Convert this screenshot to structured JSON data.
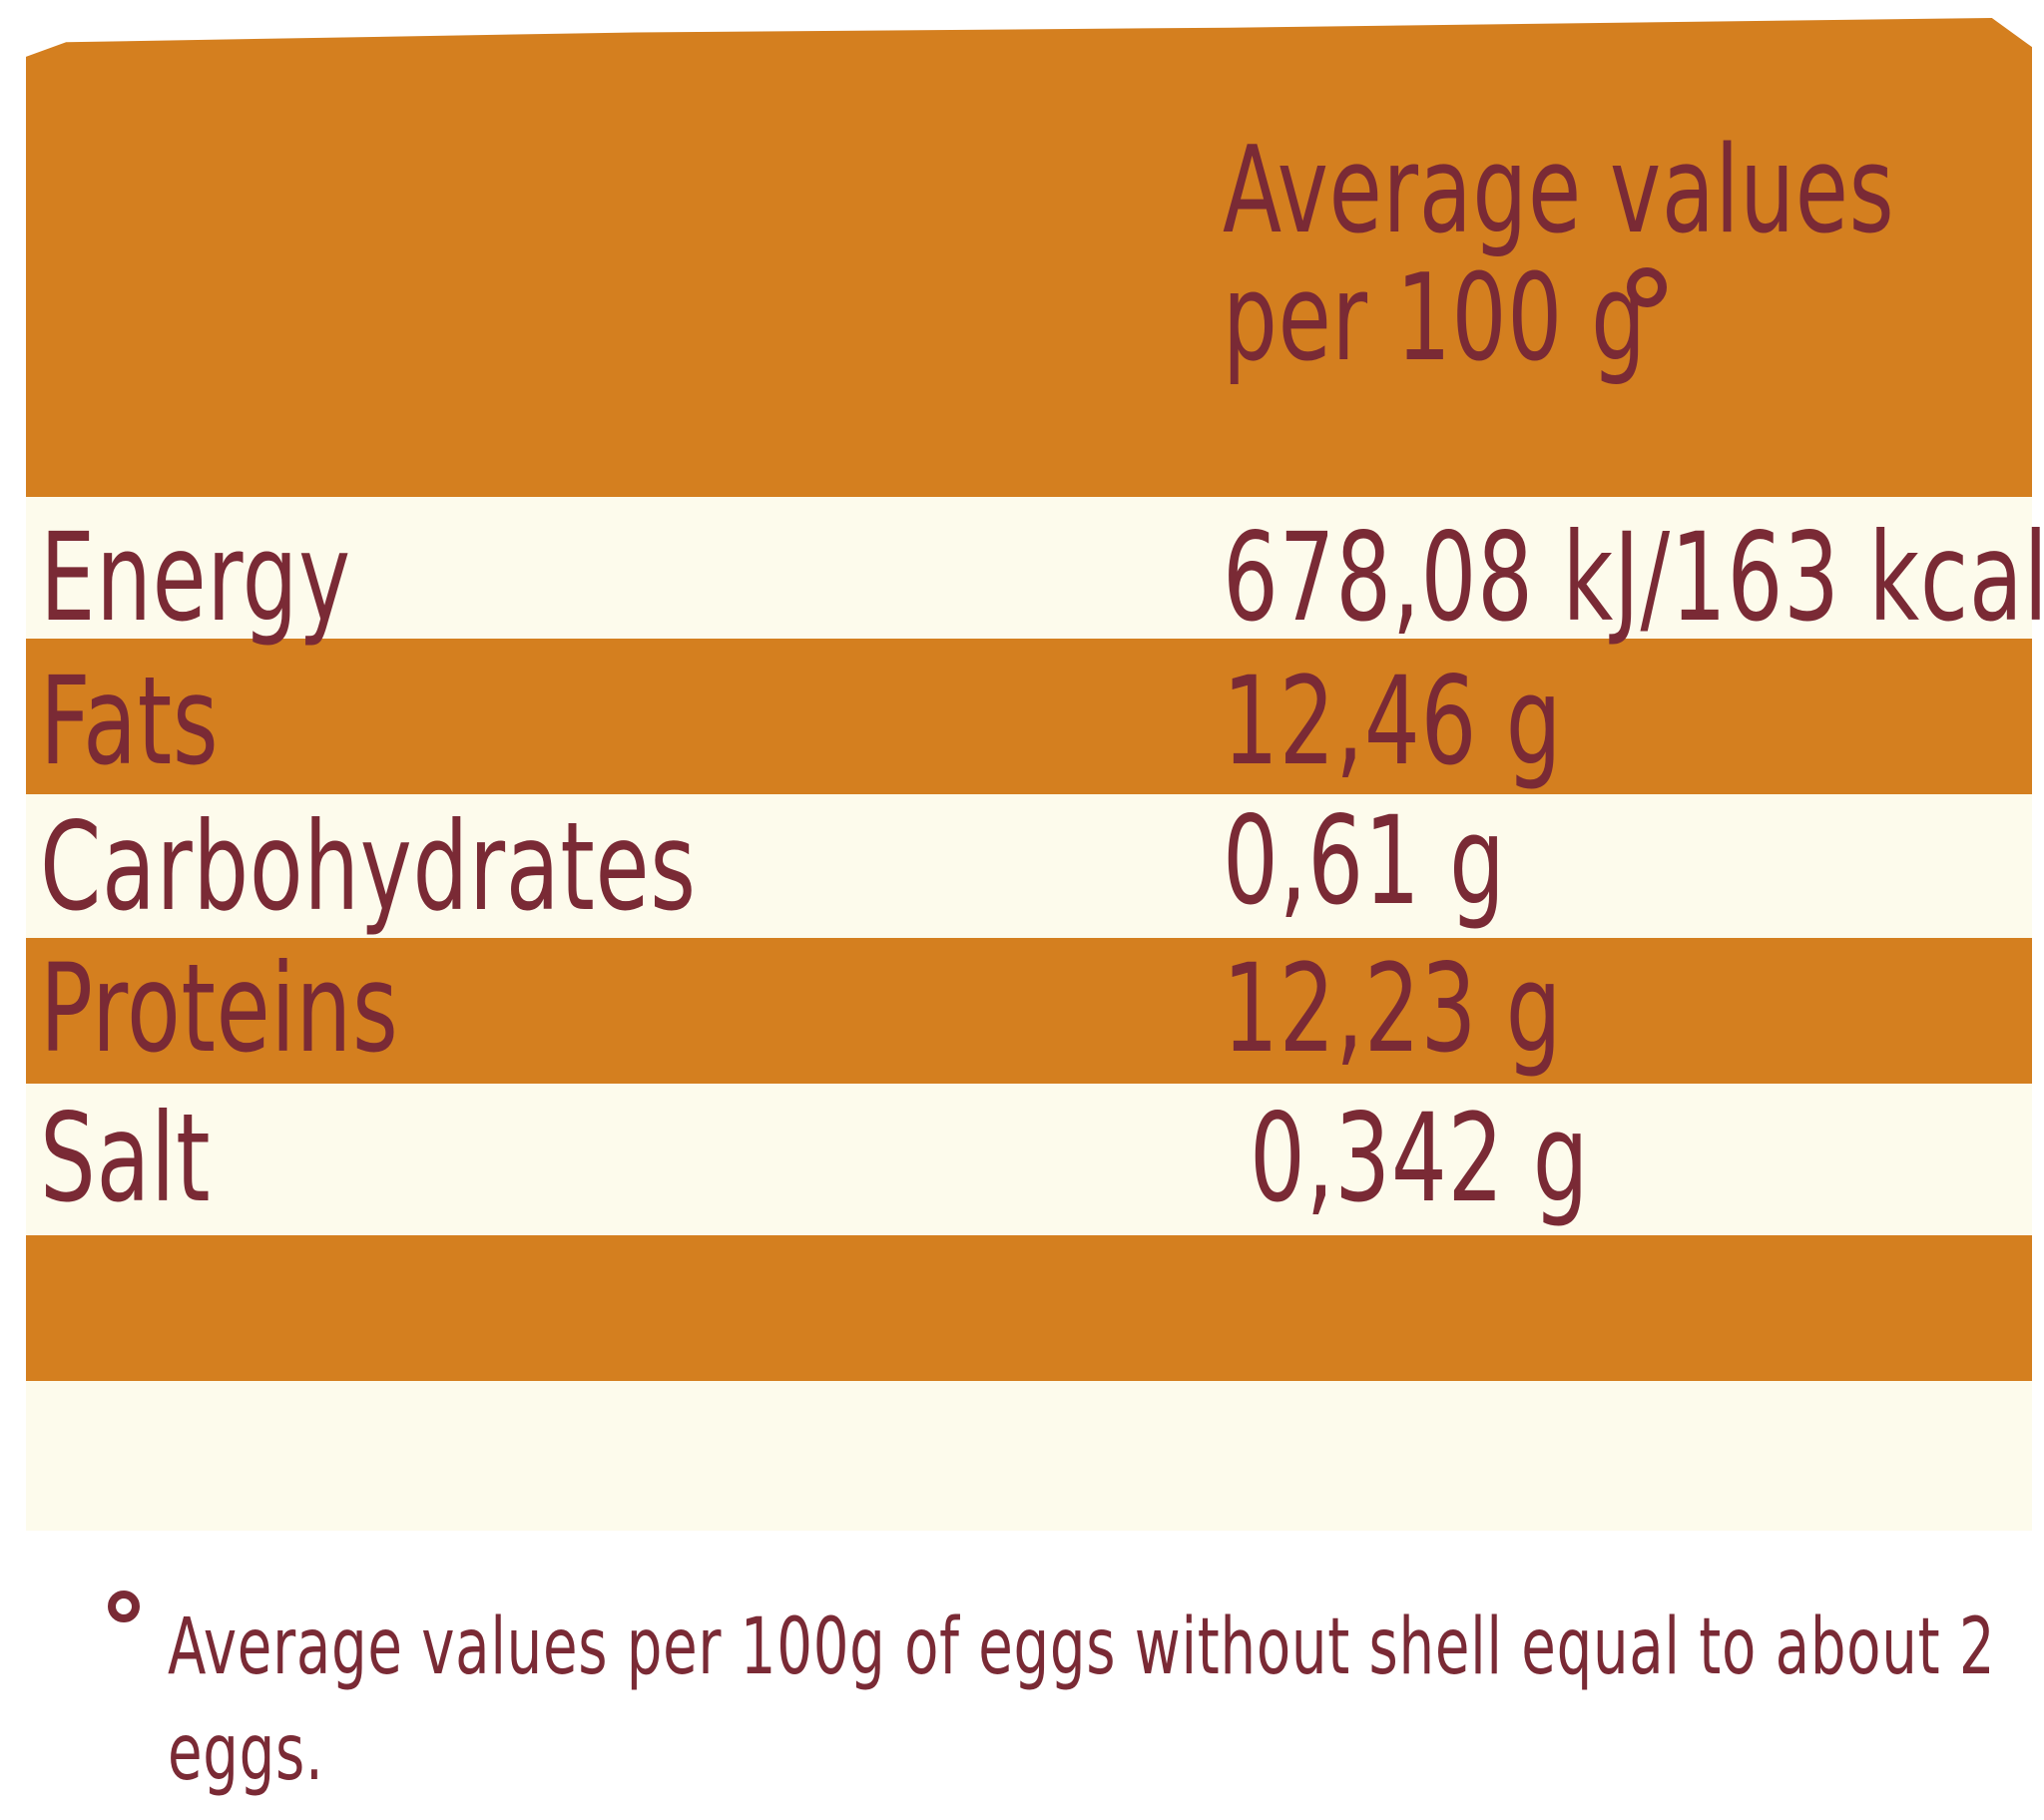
{
  "header": {
    "line1": "Average values",
    "line2": "per 100 g",
    "degree_mark": "°"
  },
  "rows": [
    {
      "label": "Energy",
      "value": "678,08 kJ/163 kcal"
    },
    {
      "label": "Fats",
      "value": "12,46 g"
    },
    {
      "label": "Carbohydrates",
      "value": "0,61 g"
    },
    {
      "label": "Proteins",
      "value": "12,23 g"
    },
    {
      "label": "Salt",
      "value": "0,342 g"
    }
  ],
  "footnote": {
    "mark": "°",
    "text": "Average values per 100g of eggs without shell equal to about 2 eggs."
  },
  "colors": {
    "orange": "#d47f1f",
    "cream": "#fdfbec",
    "text": "#7a2a35"
  }
}
